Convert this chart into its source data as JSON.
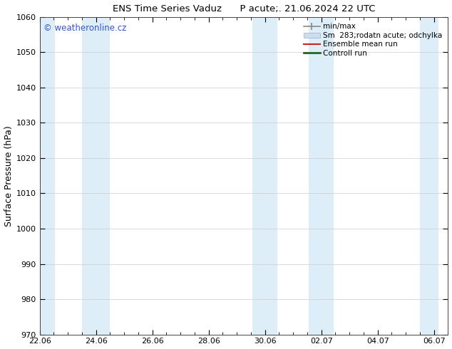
{
  "title": "ENS Time Series Vaduz      P acute;. 21.06.2024 22 UTC",
  "ylabel": "Surface Pressure (hPa)",
  "ylim": [
    970,
    1060
  ],
  "yticks": [
    970,
    980,
    990,
    1000,
    1010,
    1020,
    1030,
    1040,
    1050,
    1060
  ],
  "xtick_labels": [
    "22.06",
    "24.06",
    "26.06",
    "28.06",
    "30.06",
    "02.07",
    "04.07",
    "06.07"
  ],
  "xtick_positions": [
    0,
    2,
    4,
    6,
    8,
    10,
    12,
    14
  ],
  "xlim": [
    0,
    14
  ],
  "background_color": "#ffffff",
  "plot_bg_color": "#ffffff",
  "watermark": "© weatheronline.cz",
  "watermark_color": "#3355cc",
  "shaded_bands": [
    {
      "x_start": -0.15,
      "x_end": 0.55,
      "color": "#ddeef8"
    },
    {
      "x_start": 1.5,
      "x_end": 2.5,
      "color": "#ddeef8"
    },
    {
      "x_start": 7.55,
      "x_end": 8.45,
      "color": "#ddeef8"
    },
    {
      "x_start": 9.55,
      "x_end": 10.45,
      "color": "#ddeef8"
    },
    {
      "x_start": 13.5,
      "x_end": 14.15,
      "color": "#ddeef8"
    }
  ],
  "minor_xtick_step": 0.5,
  "legend_items": [
    {
      "label": "min/max",
      "type": "hbar_with_caps",
      "color": "#888888"
    },
    {
      "label": "Sm  283;rodatn acute; odchylka",
      "type": "patch",
      "color": "#ccddf0"
    },
    {
      "label": "Ensemble mean run",
      "type": "line",
      "color": "#cc2222",
      "lw": 1.5
    },
    {
      "label": "Controll run",
      "type": "line",
      "color": "#226622",
      "lw": 2.0
    }
  ]
}
